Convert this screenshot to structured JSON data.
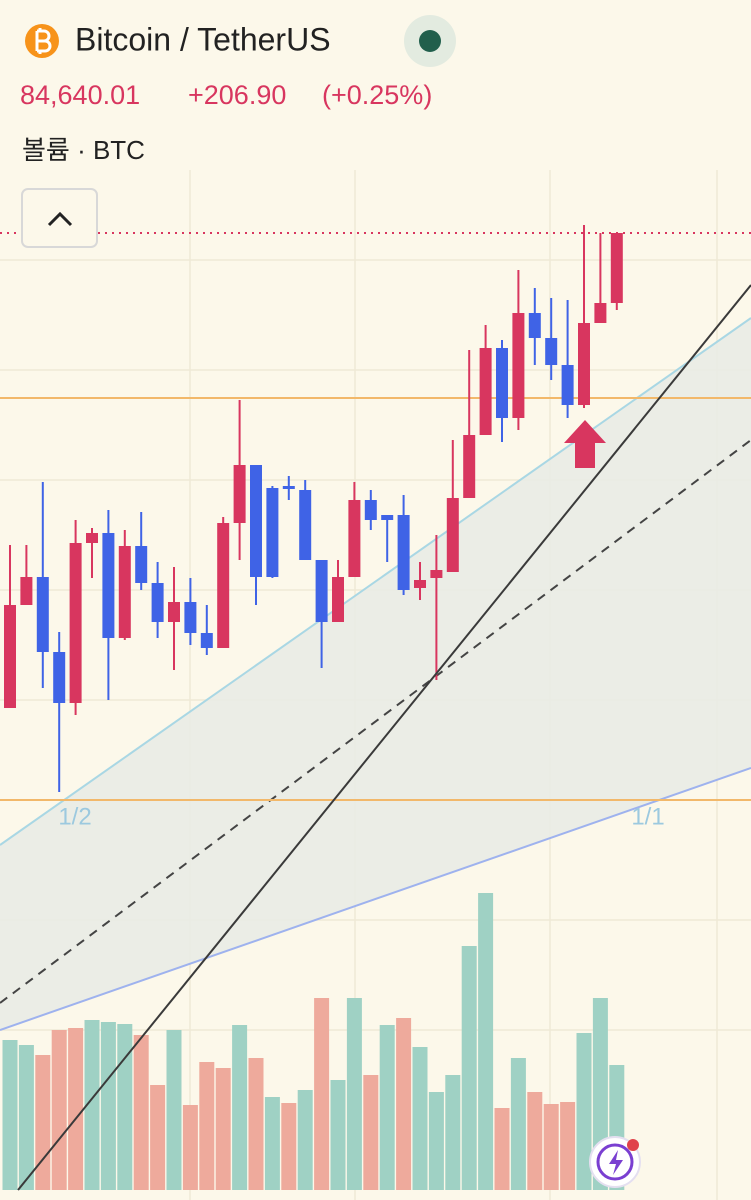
{
  "header": {
    "title": "Bitcoin / TetherUS",
    "price": "84,640.01",
    "change": "+206.90",
    "change_pct": "(+0.25%)",
    "volume_label": "볼륨 · BTC"
  },
  "time_labels": [
    "1/2",
    "1/1"
  ],
  "chart_data": {
    "type": "candlestick",
    "open": [
      292,
      395,
      423,
      348,
      297,
      457,
      467,
      362,
      454,
      417,
      378,
      398,
      367,
      352,
      477,
      535,
      512,
      514,
      510,
      440,
      378,
      423,
      500,
      485,
      485,
      412,
      422,
      428,
      502,
      565,
      652,
      582,
      687,
      662,
      635,
      595,
      677,
      697
    ],
    "high": [
      455,
      455,
      518,
      368,
      480,
      472,
      490,
      470,
      488,
      438,
      433,
      422,
      395,
      483,
      600,
      535,
      514,
      524,
      520,
      440,
      440,
      518,
      510,
      485,
      505,
      438,
      465,
      560,
      650,
      675,
      660,
      730,
      712,
      702,
      700,
      775,
      767,
      767
    ],
    "low": [
      292,
      395,
      312,
      208,
      285,
      422,
      300,
      360,
      410,
      362,
      330,
      355,
      345,
      352,
      440,
      395,
      422,
      500,
      440,
      332,
      378,
      423,
      470,
      438,
      405,
      400,
      320,
      428,
      502,
      565,
      558,
      570,
      635,
      620,
      582,
      592,
      677,
      690
    ],
    "close": [
      395,
      423,
      348,
      297,
      457,
      467,
      362,
      454,
      417,
      378,
      398,
      367,
      352,
      477,
      535,
      423,
      423,
      511,
      440,
      378,
      423,
      500,
      480,
      480,
      410,
      420,
      430,
      502,
      565,
      652,
      582,
      687,
      662,
      635,
      595,
      677,
      697,
      767
    ],
    "ylim": [
      -200,
      1000
    ],
    "up_color": "#d8365f",
    "down_color": "#3f63e6",
    "volume": [
      150,
      145,
      135,
      160,
      162,
      170,
      168,
      166,
      155,
      105,
      160,
      85,
      128,
      122,
      165,
      132,
      93,
      87,
      100,
      192,
      110,
      192,
      115,
      165,
      172,
      143,
      98,
      115,
      244,
      297,
      82,
      132,
      98,
      86,
      88,
      157,
      192,
      125
    ],
    "volume_colors": [
      "#9fd1c4",
      "#9fd1c4",
      "#eeaa9c",
      "#eeaa9c",
      "#eeaa9c",
      "#9fd1c4",
      "#9fd1c4",
      "#9fd1c4",
      "#eeaa9c",
      "#eeaa9c",
      "#9fd1c4",
      "#eeaa9c",
      "#eeaa9c",
      "#eeaa9c",
      "#9fd1c4",
      "#eeaa9c",
      "#9fd1c4",
      "#eeaa9c",
      "#9fd1c4",
      "#eeaa9c",
      "#9fd1c4",
      "#9fd1c4",
      "#eeaa9c",
      "#9fd1c4",
      "#eeaa9c",
      "#9fd1c4",
      "#9fd1c4",
      "#9fd1c4",
      "#9fd1c4",
      "#9fd1c4",
      "#eeaa9c",
      "#9fd1c4",
      "#eeaa9c",
      "#eeaa9c",
      "#eeaa9c",
      "#9fd1c4",
      "#9fd1c4",
      "#9fd1c4"
    ],
    "volume_ylim": [
      0,
      400
    ]
  }
}
